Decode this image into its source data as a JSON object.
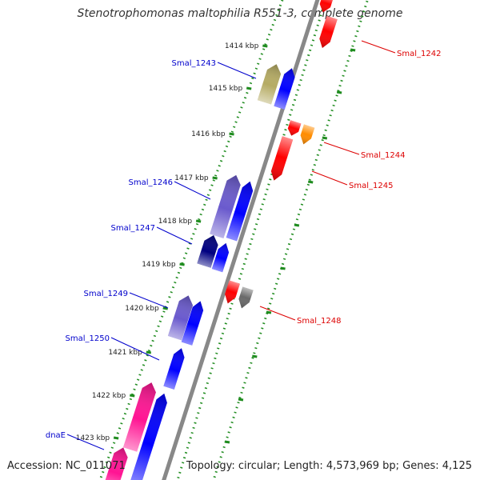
{
  "title": "Stenotrophomonas maltophilia R551-3, complete genome",
  "footer": {
    "accession": "Accession: NC_011071",
    "summary": "Topology: circular; Length: 4,573,969 bp; Genes: 4,125"
  },
  "ticks": [
    {
      "label": "1414 kbp"
    },
    {
      "label": "1415 kbp"
    },
    {
      "label": "1416 kbp"
    },
    {
      "label": "1417 kbp"
    },
    {
      "label": "1418 kbp"
    },
    {
      "label": "1419 kbp"
    },
    {
      "label": "1420 kbp"
    },
    {
      "label": "1421 kbp"
    },
    {
      "label": "1422 kbp"
    },
    {
      "label": "1423 kbp"
    }
  ],
  "genes": [
    {
      "name": "",
      "strand": "reverse",
      "color": "#ff0000"
    },
    {
      "name": "Smal_1242",
      "strand": "reverse",
      "color": "#ff0000"
    },
    {
      "name": "Smal_1243",
      "strand": "forward",
      "color": "#b5ab63"
    },
    {
      "name": "",
      "strand": "forward",
      "color": "#0000ff"
    },
    {
      "name": "",
      "strand": "reverse",
      "color": "#ff0000"
    },
    {
      "name": "Smal_1244",
      "strand": "reverse",
      "color": "#ff8c00"
    },
    {
      "name": "Smal_1245",
      "strand": "reverse",
      "color": "#ff0000"
    },
    {
      "name": "Smal_1246",
      "strand": "forward",
      "color": "#6a5acd"
    },
    {
      "name": "",
      "strand": "forward",
      "color": "#0000ff"
    },
    {
      "name": "Smal_1247",
      "strand": "forward",
      "color": "#000080"
    },
    {
      "name": "",
      "strand": "forward",
      "color": "#0000ff"
    },
    {
      "name": "Smal_1248",
      "strand": "reverse",
      "color": "#ff0000"
    },
    {
      "name": "",
      "strand": "reverse",
      "color": "#696969"
    },
    {
      "name": "Smal_1249",
      "strand": "forward",
      "color": "#6a5acd"
    },
    {
      "name": "",
      "strand": "forward",
      "color": "#0000ff"
    },
    {
      "name": "Smal_1250",
      "strand": "forward",
      "color": "#0000ff"
    },
    {
      "name": "",
      "strand": "forward",
      "color": "#ff1493"
    },
    {
      "name": "",
      "strand": "forward",
      "color": "#0000ff"
    },
    {
      "name": "dnaE",
      "strand": "forward",
      "color": "#ff1493"
    }
  ]
}
